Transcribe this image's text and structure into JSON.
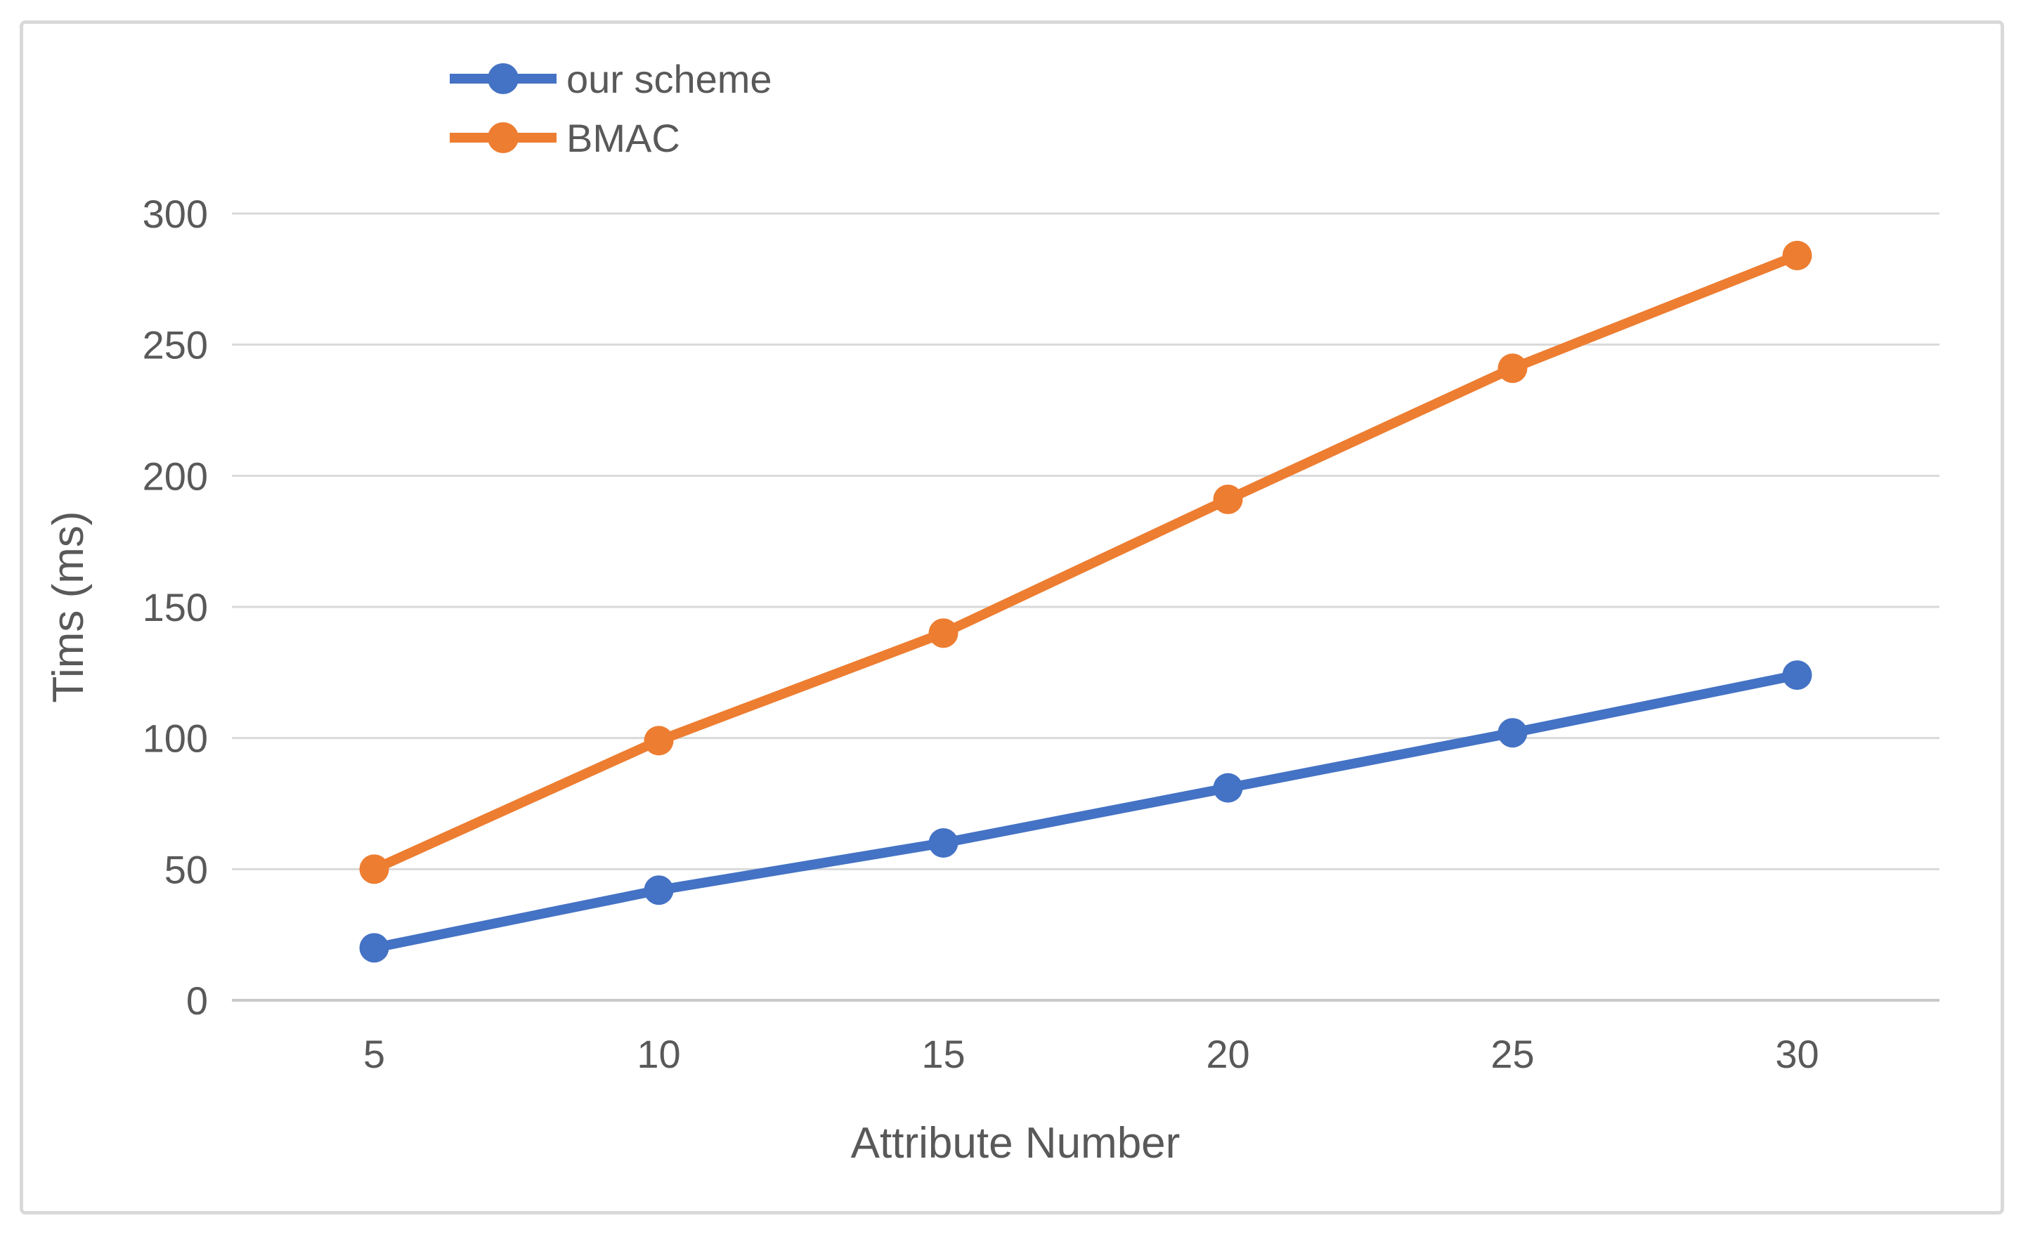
{
  "figure": {
    "background": "#ffffff",
    "border_color": "#d9d9d9"
  },
  "chart_data": {
    "type": "line",
    "title": "",
    "categories": [
      5,
      10,
      15,
      20,
      25,
      30
    ],
    "series": [
      {
        "name": "our scheme",
        "color": "#4472c4",
        "values": [
          20,
          42,
          60,
          81,
          102,
          124
        ]
      },
      {
        "name": "BMAC",
        "color": "#ed7d31",
        "values": [
          50,
          99,
          140,
          191,
          241,
          284
        ]
      }
    ],
    "xlabel": "Attribute Number",
    "ylabel": "Tims (ms)",
    "ylim": [
      0,
      300
    ],
    "ytick_step": 50,
    "yticks": [
      0,
      50,
      100,
      150,
      200,
      250,
      300
    ],
    "grid": "horizontal",
    "legend_position": "top-left-inside",
    "marker": "circle",
    "text_color": "#595959",
    "grid_color": "#d9d9d9",
    "axis_line_color": "#c9c9c9"
  }
}
